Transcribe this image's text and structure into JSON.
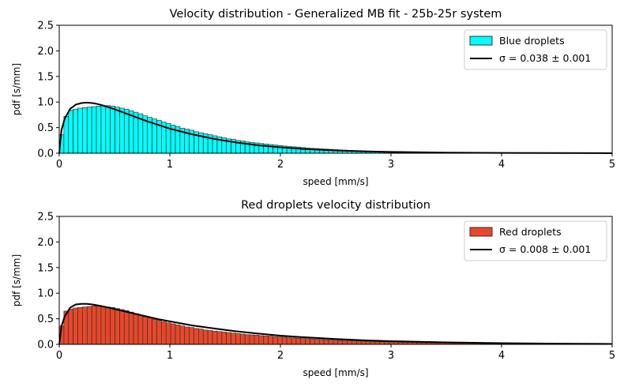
{
  "chart_data": [
    {
      "type": "bar",
      "title": "Velocity distribution - Generalized MB fit - 25b-25r system",
      "xlabel": "speed [mm/s]",
      "ylabel": "pdf [s/mm]",
      "xlim": [
        0,
        5
      ],
      "ylim": [
        0,
        2.5
      ],
      "xticks": [
        0,
        1,
        2,
        3,
        4,
        5
      ],
      "yticks": [
        0.0,
        0.5,
        1.0,
        1.5,
        2.0,
        2.5
      ],
      "xtick_labels": [
        "0",
        "1",
        "2",
        "3",
        "4",
        "5"
      ],
      "ytick_labels": [
        "0.0",
        "0.5",
        "1.0",
        "1.5",
        "2.0",
        "2.5"
      ],
      "legend_position": "top-right",
      "bar_color": "#00ffff",
      "line_color": "#000000",
      "legend": [
        {
          "label": "Blue droplets",
          "kind": "patch"
        },
        {
          "label": "σ = 0.038 ± 0.001",
          "kind": "line"
        }
      ],
      "histogram": {
        "name": "Blue droplets",
        "bin_width": 0.042,
        "x_start": 0.0,
        "values": [
          0.36,
          0.72,
          0.84,
          0.86,
          0.88,
          0.89,
          0.9,
          0.91,
          0.92,
          0.93,
          0.93,
          0.92,
          0.9,
          0.88,
          0.86,
          0.83,
          0.8,
          0.77,
          0.73,
          0.7,
          0.67,
          0.64,
          0.61,
          0.58,
          0.55,
          0.52,
          0.49,
          0.47,
          0.45,
          0.42,
          0.4,
          0.38,
          0.36,
          0.34,
          0.32,
          0.3,
          0.28,
          0.27,
          0.25,
          0.24,
          0.22,
          0.21,
          0.2,
          0.19,
          0.18,
          0.17,
          0.16,
          0.15,
          0.14,
          0.13,
          0.125,
          0.12,
          0.11,
          0.1,
          0.095,
          0.09,
          0.085,
          0.08,
          0.075,
          0.07,
          0.065,
          0.06,
          0.055,
          0.05,
          0.047,
          0.044,
          0.04,
          0.037,
          0.034,
          0.031,
          0.029,
          0.027,
          0.025,
          0.023,
          0.021,
          0.019,
          0.017,
          0.015,
          0.014,
          0.013,
          0.012,
          0.011,
          0.01,
          0.009,
          0.008,
          0.007,
          0.006,
          0.006,
          0.005,
          0.005,
          0.004,
          0.004,
          0.003,
          0.003,
          0.003,
          0.002,
          0.002,
          0.002,
          0.002,
          0.001,
          0.001,
          0.001,
          0.001,
          0.001,
          0.001,
          0.001,
          0.001,
          0.001,
          0.001,
          0.001,
          0.001,
          0.001,
          0.001,
          0.001,
          0.001,
          0.001,
          0.001,
          0.001,
          0.001
        ]
      },
      "fit_curve": {
        "name": "σ = 0.038 ± 0.001",
        "x": [
          0.0,
          0.02,
          0.05,
          0.1,
          0.15,
          0.2,
          0.25,
          0.3,
          0.35,
          0.4,
          0.5,
          0.6,
          0.7,
          0.8,
          0.9,
          1.0,
          1.2,
          1.4,
          1.6,
          1.8,
          2.0,
          2.2,
          2.5,
          2.8,
          3.0,
          3.5,
          4.0,
          4.5,
          5.0
        ],
        "y": [
          0.0,
          0.45,
          0.68,
          0.87,
          0.95,
          0.98,
          0.99,
          0.98,
          0.96,
          0.93,
          0.86,
          0.78,
          0.7,
          0.62,
          0.55,
          0.48,
          0.37,
          0.28,
          0.21,
          0.155,
          0.115,
          0.085,
          0.055,
          0.035,
          0.026,
          0.012,
          0.006,
          0.003,
          0.001
        ]
      }
    },
    {
      "type": "bar",
      "title": "Red droplets velocity distribution",
      "xlabel": "speed [mm/s]",
      "ylabel": "pdf [s/mm]",
      "xlim": [
        0,
        5
      ],
      "ylim": [
        0,
        2.5
      ],
      "xticks": [
        0,
        1,
        2,
        3,
        4,
        5
      ],
      "yticks": [
        0.0,
        0.5,
        1.0,
        1.5,
        2.0,
        2.5
      ],
      "xtick_labels": [
        "0",
        "1",
        "2",
        "3",
        "4",
        "5"
      ],
      "ytick_labels": [
        "0.0",
        "0.5",
        "1.0",
        "1.5",
        "2.0",
        "2.5"
      ],
      "legend_position": "top-right",
      "bar_color": "#e8472a",
      "line_color": "#000000",
      "legend": [
        {
          "label": "Red droplets",
          "kind": "patch"
        },
        {
          "label": "σ = 0.008 ± 0.001",
          "kind": "line"
        }
      ],
      "histogram": {
        "name": "Red droplets",
        "bin_width": 0.042,
        "x_start": 0.0,
        "values": [
          0.36,
          0.65,
          0.69,
          0.71,
          0.72,
          0.73,
          0.74,
          0.75,
          0.75,
          0.74,
          0.73,
          0.72,
          0.7,
          0.68,
          0.66,
          0.63,
          0.6,
          0.57,
          0.54,
          0.52,
          0.49,
          0.47,
          0.44,
          0.42,
          0.4,
          0.38,
          0.36,
          0.34,
          0.33,
          0.31,
          0.3,
          0.28,
          0.27,
          0.26,
          0.25,
          0.24,
          0.23,
          0.22,
          0.21,
          0.2,
          0.19,
          0.185,
          0.18,
          0.17,
          0.165,
          0.16,
          0.15,
          0.145,
          0.14,
          0.13,
          0.125,
          0.12,
          0.115,
          0.11,
          0.105,
          0.1,
          0.095,
          0.09,
          0.085,
          0.08,
          0.078,
          0.075,
          0.07,
          0.067,
          0.064,
          0.06,
          0.058,
          0.055,
          0.052,
          0.05,
          0.048,
          0.046,
          0.044,
          0.042,
          0.04,
          0.038,
          0.036,
          0.034,
          0.032,
          0.031,
          0.03,
          0.028,
          0.027,
          0.026,
          0.025,
          0.024,
          0.023,
          0.022,
          0.021,
          0.02,
          0.019,
          0.018,
          0.018,
          0.017,
          0.016,
          0.016,
          0.015,
          0.015,
          0.014,
          0.014,
          0.013,
          0.013,
          0.012,
          0.012,
          0.011,
          0.011,
          0.01,
          0.01,
          0.01,
          0.009,
          0.009,
          0.009,
          0.008,
          0.008,
          0.008,
          0.007,
          0.007,
          0.007,
          0.007
        ]
      },
      "fit_curve": {
        "name": "σ = 0.008 ± 0.001",
        "x": [
          0.0,
          0.02,
          0.05,
          0.1,
          0.15,
          0.2,
          0.25,
          0.3,
          0.35,
          0.4,
          0.5,
          0.6,
          0.7,
          0.8,
          0.9,
          1.0,
          1.2,
          1.4,
          1.6,
          1.8,
          2.0,
          2.2,
          2.5,
          2.8,
          3.0,
          3.5,
          4.0,
          4.5,
          5.0
        ],
        "y": [
          0.0,
          0.35,
          0.55,
          0.72,
          0.78,
          0.79,
          0.79,
          0.78,
          0.76,
          0.74,
          0.69,
          0.64,
          0.59,
          0.54,
          0.49,
          0.45,
          0.37,
          0.31,
          0.255,
          0.21,
          0.17,
          0.14,
          0.105,
          0.075,
          0.062,
          0.038,
          0.023,
          0.014,
          0.008
        ]
      }
    }
  ]
}
